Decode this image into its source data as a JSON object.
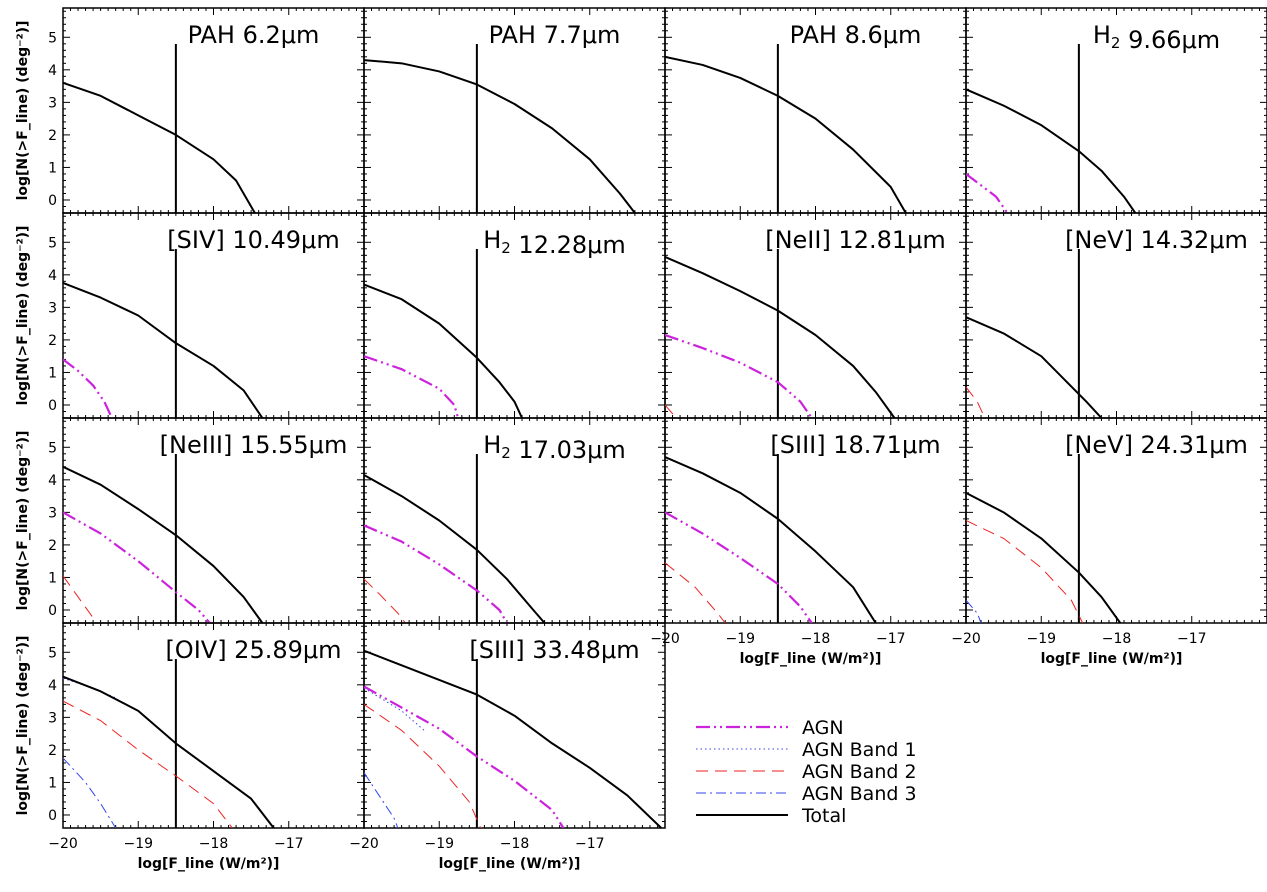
{
  "chart_data": {
    "type": "line",
    "xlabel": "log[F_line (W/m²)]",
    "ylabel": "log[N(>F_line) (deg⁻²)]",
    "xlim": [
      -20,
      -16
    ],
    "ylim": [
      -0.4,
      5.9
    ],
    "x_ticks": [
      -20,
      -19,
      -18,
      -17
    ],
    "y_ticks": [
      0,
      1,
      2,
      3,
      4,
      5
    ],
    "vline_x": -18.5,
    "legend": [
      {
        "name": "AGN",
        "color": "#cc22dd",
        "style": "dash-dot-dot"
      },
      {
        "name": "AGN Band 1",
        "color": "#3344ee",
        "style": "dotted"
      },
      {
        "name": "AGN Band 2",
        "color": "#ee2222",
        "style": "dashed"
      },
      {
        "name": "AGN Band 3",
        "color": "#3344ee",
        "style": "dash-dot"
      },
      {
        "name": "Total",
        "color": "#000000",
        "style": "solid"
      }
    ],
    "panels": [
      {
        "title": "PAH 6.2μm",
        "series": {
          "total": [
            [
              -20,
              3.6
            ],
            [
              -19.5,
              3.2
            ],
            [
              -19,
              2.6
            ],
            [
              -18.5,
              2.0
            ],
            [
              -18,
              1.25
            ],
            [
              -17.7,
              0.6
            ],
            [
              -17.45,
              -0.4
            ]
          ]
        }
      },
      {
        "title": "PAH 7.7μm",
        "series": {
          "total": [
            [
              -20,
              4.3
            ],
            [
              -19.5,
              4.2
            ],
            [
              -19,
              3.95
            ],
            [
              -18.5,
              3.55
            ],
            [
              -18,
              2.95
            ],
            [
              -17.5,
              2.2
            ],
            [
              -17,
              1.25
            ],
            [
              -16.6,
              0.2
            ],
            [
              -16.4,
              -0.4
            ]
          ]
        }
      },
      {
        "title": "PAH 8.6μm",
        "series": {
          "total": [
            [
              -20,
              4.4
            ],
            [
              -19.5,
              4.15
            ],
            [
              -19,
              3.75
            ],
            [
              -18.5,
              3.2
            ],
            [
              -18,
              2.5
            ],
            [
              -17.5,
              1.55
            ],
            [
              -17,
              0.4
            ],
            [
              -16.8,
              -0.4
            ]
          ]
        }
      },
      {
        "title": "H₂ 9.66μm",
        "series": {
          "total": [
            [
              -20,
              3.4
            ],
            [
              -19.5,
              2.9
            ],
            [
              -19,
              2.3
            ],
            [
              -18.5,
              1.5
            ],
            [
              -18.2,
              0.9
            ],
            [
              -17.9,
              0.1
            ],
            [
              -17.75,
              -0.4
            ]
          ]
        },
        "agn": [
          [
            -20,
            0.8
          ],
          [
            -19.8,
            0.45
          ],
          [
            -19.6,
            0.1
          ],
          [
            -19.45,
            -0.4
          ]
        ]
      },
      {
        "title": "[SIV] 10.49μm",
        "series": {
          "total": [
            [
              -20,
              3.75
            ],
            [
              -19.5,
              3.3
            ],
            [
              -19,
              2.75
            ],
            [
              -18.5,
              1.9
            ],
            [
              -18,
              1.2
            ],
            [
              -17.6,
              0.45
            ],
            [
              -17.35,
              -0.4
            ]
          ]
        },
        "agn": [
          [
            -20,
            1.4
          ],
          [
            -19.8,
            1.05
          ],
          [
            -19.6,
            0.6
          ],
          [
            -19.45,
            0.1
          ],
          [
            -19.35,
            -0.4
          ]
        ]
      },
      {
        "title": "H₂ 12.28μm",
        "series": {
          "total": [
            [
              -20,
              3.7
            ],
            [
              -19.5,
              3.25
            ],
            [
              -19,
              2.5
            ],
            [
              -18.5,
              1.45
            ],
            [
              -18.2,
              0.7
            ],
            [
              -18,
              0.1
            ],
            [
              -17.9,
              -0.4
            ]
          ]
        },
        "agn": [
          [
            -20,
            1.5
          ],
          [
            -19.5,
            1.1
          ],
          [
            -19,
            0.5
          ],
          [
            -18.8,
            0.0
          ],
          [
            -18.75,
            -0.4
          ]
        ]
      },
      {
        "title": "[NeII] 12.81μm",
        "series": {
          "total": [
            [
              -20,
              4.55
            ],
            [
              -19.5,
              4.05
            ],
            [
              -19,
              3.5
            ],
            [
              -18.5,
              2.9
            ],
            [
              -18,
              2.15
            ],
            [
              -17.5,
              1.2
            ],
            [
              -17.2,
              0.4
            ],
            [
              -16.95,
              -0.4
            ]
          ]
        },
        "agn": [
          [
            -20,
            2.15
          ],
          [
            -19.5,
            1.75
          ],
          [
            -19,
            1.3
          ],
          [
            -18.5,
            0.7
          ],
          [
            -18.2,
            0.1
          ],
          [
            -18.05,
            -0.4
          ]
        ],
        "band2": [
          [
            -20,
            0.0
          ],
          [
            -19.85,
            -0.4
          ]
        ]
      },
      {
        "title": "[NeV] 14.32μm",
        "series": {
          "total": [
            [
              -20,
              2.7
            ],
            [
              -19.5,
              2.2
            ],
            [
              -19,
              1.5
            ],
            [
              -18.7,
              0.8
            ],
            [
              -18.4,
              0.1
            ],
            [
              -18.2,
              -0.4
            ]
          ]
        },
        "band2": [
          [
            -20,
            0.55
          ],
          [
            -19.85,
            0.1
          ],
          [
            -19.75,
            -0.4
          ]
        ]
      },
      {
        "title": "[NeIII] 15.55μm",
        "series": {
          "total": [
            [
              -20,
              4.4
            ],
            [
              -19.5,
              3.85
            ],
            [
              -19,
              3.1
            ],
            [
              -18.5,
              2.3
            ],
            [
              -18,
              1.35
            ],
            [
              -17.6,
              0.4
            ],
            [
              -17.35,
              -0.4
            ]
          ]
        },
        "agn": [
          [
            -20,
            3.0
          ],
          [
            -19.5,
            2.35
          ],
          [
            -19,
            1.5
          ],
          [
            -18.5,
            0.55
          ],
          [
            -18.2,
            0.0
          ],
          [
            -18.05,
            -0.4
          ]
        ],
        "band2": [
          [
            -20,
            1.05
          ],
          [
            -19.8,
            0.4
          ],
          [
            -19.55,
            -0.4
          ]
        ]
      },
      {
        "title": "H₂ 17.03μm",
        "series": {
          "total": [
            [
              -20,
              4.15
            ],
            [
              -19.5,
              3.5
            ],
            [
              -19,
              2.75
            ],
            [
              -18.5,
              1.85
            ],
            [
              -18.1,
              0.95
            ],
            [
              -17.75,
              0.0
            ],
            [
              -17.6,
              -0.4
            ]
          ]
        },
        "agn": [
          [
            -20,
            2.6
          ],
          [
            -19.5,
            2.1
          ],
          [
            -19,
            1.4
          ],
          [
            -18.5,
            0.6
          ],
          [
            -18.2,
            0.0
          ],
          [
            -18.1,
            -0.4
          ]
        ],
        "band2": [
          [
            -20,
            0.95
          ],
          [
            -19.8,
            0.5
          ],
          [
            -19.55,
            -0.1
          ],
          [
            -19.45,
            -0.4
          ]
        ]
      },
      {
        "title": "[SIII] 18.71μm",
        "series": {
          "total": [
            [
              -20,
              4.7
            ],
            [
              -19.5,
              4.2
            ],
            [
              -19,
              3.6
            ],
            [
              -18.5,
              2.8
            ],
            [
              -18,
              1.8
            ],
            [
              -17.5,
              0.7
            ],
            [
              -17.2,
              -0.4
            ]
          ]
        },
        "agn": [
          [
            -20,
            3.0
          ],
          [
            -19.5,
            2.35
          ],
          [
            -19,
            1.6
          ],
          [
            -18.5,
            0.8
          ],
          [
            -18.2,
            0.1
          ],
          [
            -18.05,
            -0.4
          ]
        ],
        "band2": [
          [
            -20,
            1.45
          ],
          [
            -19.6,
            0.7
          ],
          [
            -19.3,
            -0.1
          ],
          [
            -19.2,
            -0.4
          ]
        ]
      },
      {
        "title": "[NeV] 24.31μm",
        "series": {
          "total": [
            [
              -20,
              3.6
            ],
            [
              -19.5,
              3.0
            ],
            [
              -19,
              2.2
            ],
            [
              -18.5,
              1.15
            ],
            [
              -18.2,
              0.4
            ],
            [
              -17.95,
              -0.4
            ]
          ]
        },
        "band2": [
          [
            -20,
            2.75
          ],
          [
            -19.5,
            2.2
          ],
          [
            -19,
            1.3
          ],
          [
            -18.6,
            0.3
          ],
          [
            -18.45,
            -0.4
          ]
        ],
        "band3": [
          [
            -20,
            0.3
          ],
          [
            -19.85,
            -0.1
          ],
          [
            -19.8,
            -0.4
          ]
        ]
      },
      {
        "title": "[OIV] 25.89μm",
        "series": {
          "total": [
            [
              -20,
              4.25
            ],
            [
              -19.5,
              3.8
            ],
            [
              -19,
              3.2
            ],
            [
              -18.5,
              2.2
            ],
            [
              -18,
              1.35
            ],
            [
              -17.5,
              0.5
            ],
            [
              -17.2,
              -0.4
            ]
          ]
        },
        "band1": [
          [
            -20,
            4.2
          ],
          [
            -19.6,
            3.9
          ],
          [
            -19.3,
            3.6
          ]
        ],
        "band2": [
          [
            -20,
            3.5
          ],
          [
            -19.5,
            2.9
          ],
          [
            -19,
            2.0
          ],
          [
            -18.5,
            1.2
          ],
          [
            -18,
            0.35
          ],
          [
            -17.75,
            -0.4
          ]
        ],
        "band3": [
          [
            -20,
            1.75
          ],
          [
            -19.7,
            1.0
          ],
          [
            -19.5,
            0.35
          ],
          [
            -19.3,
            -0.4
          ]
        ]
      },
      {
        "title": "[SIII] 33.48μm",
        "series": {
          "total": [
            [
              -20,
              5.05
            ],
            [
              -19.5,
              4.6
            ],
            [
              -19,
              4.15
            ],
            [
              -18.5,
              3.7
            ],
            [
              -18,
              3.05
            ],
            [
              -17.5,
              2.2
            ],
            [
              -17,
              1.45
            ],
            [
              -16.5,
              0.6
            ],
            [
              -16.05,
              -0.4
            ]
          ]
        },
        "agn": [
          [
            -20,
            3.95
          ],
          [
            -19.5,
            3.3
          ],
          [
            -19,
            2.65
          ],
          [
            -18.5,
            1.8
          ],
          [
            -18,
            1.05
          ],
          [
            -17.5,
            0.15
          ],
          [
            -17.35,
            -0.4
          ]
        ],
        "band1": [
          [
            -20,
            3.9
          ],
          [
            -19.5,
            3.2
          ],
          [
            -19.2,
            2.6
          ]
        ],
        "band2": [
          [
            -20,
            3.4
          ],
          [
            -19.5,
            2.6
          ],
          [
            -19,
            1.5
          ],
          [
            -18.6,
            0.4
          ],
          [
            -18.45,
            -0.4
          ]
        ],
        "band3": [
          [
            -20,
            1.3
          ],
          [
            -19.8,
            0.6
          ],
          [
            -19.6,
            -0.1
          ],
          [
            -19.55,
            -0.4
          ]
        ]
      }
    ]
  }
}
